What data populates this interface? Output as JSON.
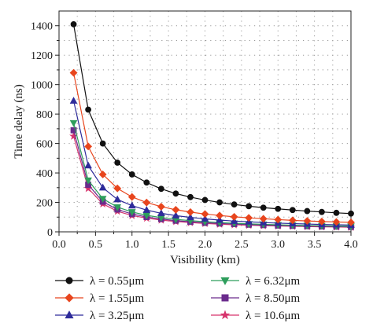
{
  "chart_data": {
    "type": "line",
    "xlabel": "Visibility (km)",
    "ylabel": "Time delay (ns)",
    "xlim": [
      0.0,
      4.0
    ],
    "ylim": [
      0,
      1500
    ],
    "xticks": [
      0.0,
      0.5,
      1.0,
      1.5,
      2.0,
      2.5,
      3.0,
      3.5,
      4.0
    ],
    "xtick_labels": [
      "0.0",
      "0.5",
      "1.0",
      "1.5",
      "2.0",
      "2.5",
      "3.0",
      "3.5",
      "4.0"
    ],
    "yticks": [
      0,
      200,
      400,
      600,
      800,
      1000,
      1200,
      1400
    ],
    "ytick_labels": [
      "0",
      "200",
      "400",
      "600",
      "800",
      "1000",
      "1200",
      "1400"
    ],
    "grid": true,
    "legend_position": "below plot, two columns",
    "x": [
      0.2,
      0.4,
      0.6,
      0.8,
      1.0,
      1.2,
      1.4,
      1.6,
      1.8,
      2.0,
      2.2,
      2.4,
      2.6,
      2.8,
      3.0,
      3.2,
      3.4,
      3.6,
      3.8,
      4.0
    ],
    "series": [
      {
        "name": "λ = 0.55μm",
        "color": "#111111",
        "marker": "circle",
        "values": [
          1410,
          830,
          600,
          470,
          390,
          335,
          292,
          260,
          236,
          216,
          200,
          186,
          174,
          164,
          156,
          148,
          141,
          135,
          129,
          124
        ]
      },
      {
        "name": "λ = 1.55μm",
        "color": "#e8451d",
        "marker": "diamond",
        "values": [
          1080,
          580,
          390,
          295,
          237,
          199,
          171,
          150,
          134,
          121,
          111,
          102,
          95,
          89,
          83,
          78,
          74,
          70,
          67,
          64
        ]
      },
      {
        "name": "λ = 3.25μm",
        "color": "#2e2b9a",
        "marker": "triangle-up",
        "values": [
          890,
          450,
          300,
          220,
          178,
          148,
          126,
          110,
          98,
          88,
          80,
          73,
          68,
          63,
          59,
          56,
          53,
          50,
          48,
          46
        ]
      },
      {
        "name": "λ = 6.32μm",
        "color": "#2e9e5c",
        "marker": "triangle-down",
        "values": [
          740,
          350,
          225,
          168,
          135,
          112,
          97,
          85,
          76,
          69,
          63,
          58,
          54,
          51,
          48,
          45,
          43,
          41,
          39,
          38
        ]
      },
      {
        "name": "λ = 8.50μm",
        "color": "#6a2b8c",
        "marker": "square",
        "values": [
          690,
          320,
          205,
          152,
          121,
          101,
          87,
          76,
          68,
          62,
          57,
          53,
          49,
          46,
          43,
          41,
          39,
          37,
          36,
          34
        ]
      },
      {
        "name": "λ = 10.6μm",
        "color": "#d6336c",
        "marker": "star",
        "values": [
          650,
          295,
          190,
          140,
          111,
          93,
          80,
          70,
          63,
          57,
          52,
          48,
          45,
          42,
          40,
          38,
          36,
          34,
          33,
          31
        ]
      }
    ]
  }
}
